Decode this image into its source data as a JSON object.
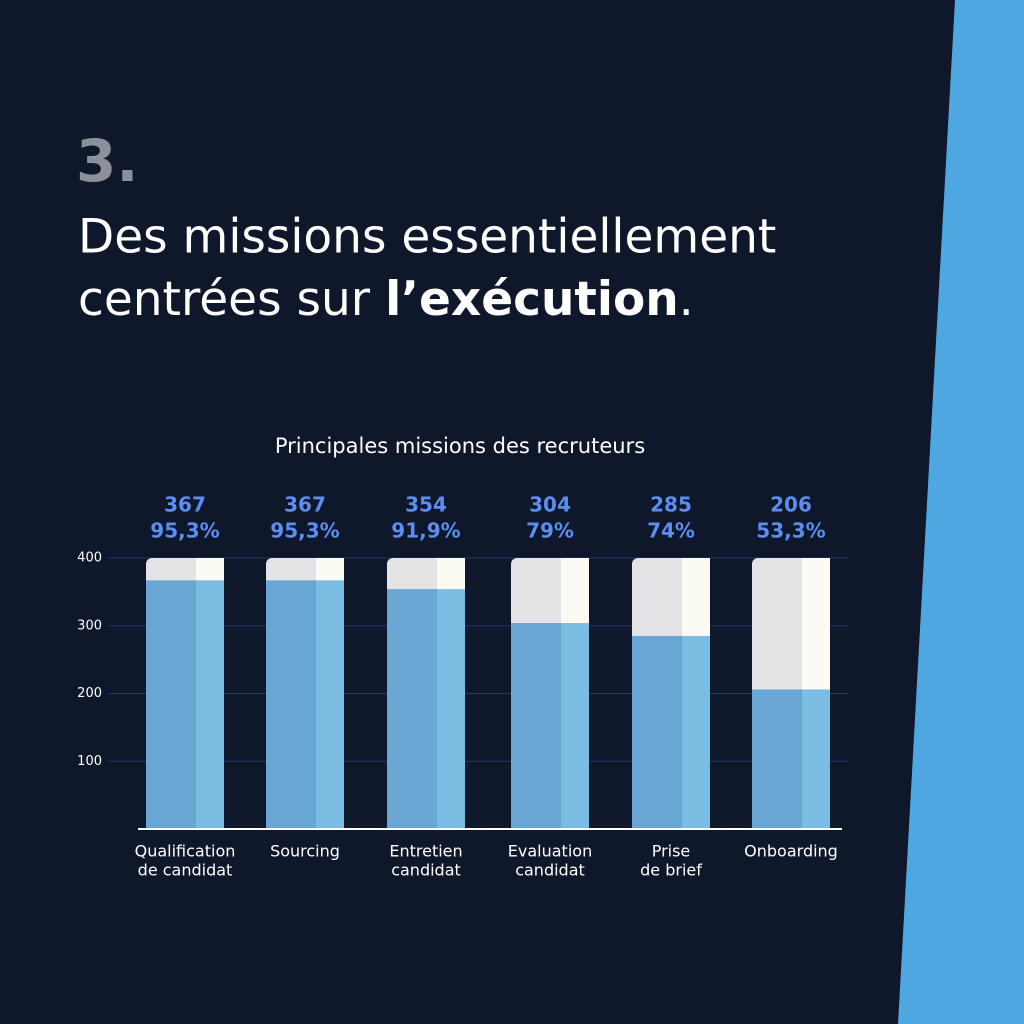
{
  "chart_data": {
    "type": "bar",
    "number": "3.",
    "headline": [
      "Des missions essentiellement",
      "centrées sur ",
      "l’exécution",
      "."
    ],
    "title": "Principales missions des recruteurs",
    "categories": [
      [
        "Qualification",
        "de candidat"
      ],
      [
        "Sourcing"
      ],
      [
        "Entretien",
        "candidat"
      ],
      [
        "Evaluation",
        "candidat"
      ],
      [
        "Prise",
        "de brief"
      ],
      [
        "Onboarding"
      ]
    ],
    "values": [
      367,
      367,
      354,
      304,
      285,
      206
    ],
    "shares": {
      "values": [
        95.3,
        95.3,
        91.9,
        79,
        74,
        53.3
      ],
      "value_labels": [
        "95,3%",
        "95,3%",
        "91,9%",
        "79%",
        "74%",
        "53,3%"
      ]
    },
    "color": "#6aa6d4",
    "ylim": [
      0,
      400
    ],
    "yticks": [
      100,
      200,
      300,
      400
    ],
    "grid": true
  }
}
